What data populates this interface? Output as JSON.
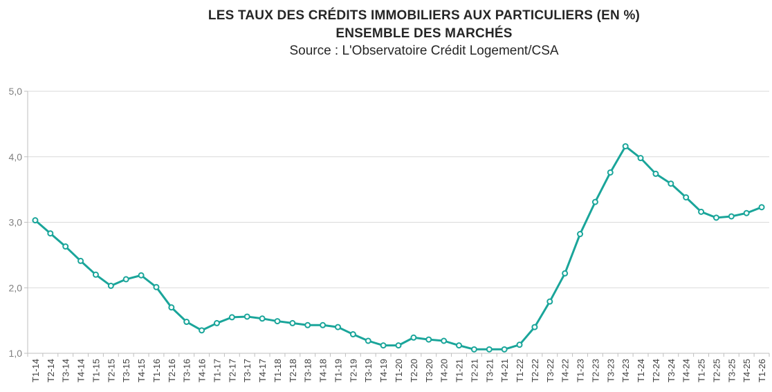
{
  "chart_data": {
    "type": "line",
    "title": "LES TAUX DES CRÉDITS IMMOBILIERS AUX PARTICULIERS (EN %)",
    "subtitle": "ENSEMBLE DES MARCHÉS",
    "source": "Source : L'Observatoire Crédit Logement/CSA",
    "ylim": [
      1.0,
      5.0
    ],
    "yticks": [
      "1,0",
      "2,0",
      "3,0",
      "4,0",
      "5,0"
    ],
    "grid": true,
    "color": "#1aa59a",
    "categories": [
      "T1-14",
      "T2-14",
      "T3-14",
      "T4-14",
      "T1-15",
      "T2-15",
      "T3-15",
      "T4-15",
      "T1-16",
      "T2-16",
      "T3-16",
      "T4-16",
      "T1-17",
      "T2-17",
      "T3-17",
      "T4-17",
      "T1-18",
      "T2-18",
      "T3-18",
      "T4-18",
      "T1-19",
      "T2-19",
      "T3-19",
      "T4-19",
      "T1-20",
      "T2-20",
      "T3-20",
      "T4-20",
      "T1-21",
      "T2-21",
      "T3-21",
      "T4-21",
      "T1-22",
      "T2-22",
      "T3-22",
      "T4-22",
      "T1-23",
      "T2-23",
      "T3-23",
      "T4-23",
      "T1-24",
      "T2-24",
      "T3-24",
      "T4-24",
      "T1-25",
      "T2-25",
      "T3-25",
      "T4-25",
      "T1-26"
    ],
    "values": [
      3.03,
      2.83,
      2.63,
      2.41,
      2.2,
      2.03,
      2.13,
      2.19,
      2.01,
      1.7,
      1.48,
      1.35,
      1.46,
      1.55,
      1.56,
      1.53,
      1.49,
      1.46,
      1.43,
      1.43,
      1.4,
      1.29,
      1.19,
      1.12,
      1.12,
      1.24,
      1.21,
      1.19,
      1.12,
      1.06,
      1.06,
      1.06,
      1.13,
      1.4,
      1.79,
      2.22,
      2.82,
      3.31,
      3.76,
      4.16,
      3.98,
      3.74,
      3.59,
      3.38,
      3.16,
      3.07,
      3.09,
      3.14,
      3.23
    ]
  }
}
